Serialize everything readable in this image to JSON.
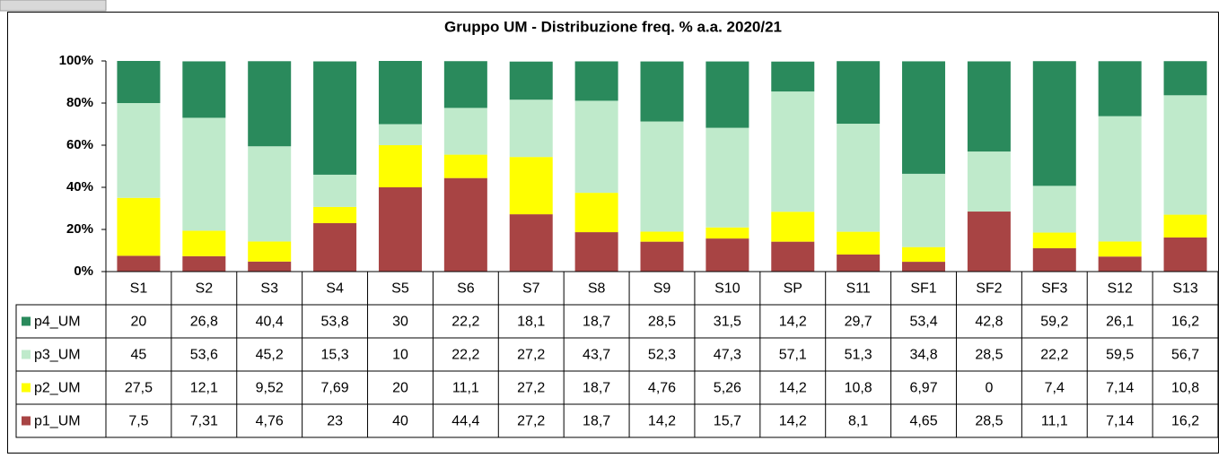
{
  "chart_data": {
    "type": "stacked_bar",
    "title": "Gruppo UM - Distribuzione freq. % a.a. 2020/21",
    "categories": [
      "S1",
      "S2",
      "S3",
      "S4",
      "S5",
      "S6",
      "S7",
      "S8",
      "S9",
      "S10",
      "SP",
      "S11",
      "SF1",
      "SF2",
      "SF3",
      "S12",
      "S13"
    ],
    "series": [
      {
        "name": "p4_UM",
        "color": "#2a8a5c",
        "values": [
          20,
          26.8,
          40.4,
          53.8,
          30,
          22.2,
          18.1,
          18.7,
          28.5,
          31.5,
          14.2,
          29.7,
          53.4,
          42.8,
          59.2,
          26.1,
          16.2
        ],
        "value_labels": [
          "20",
          "26,8",
          "40,4",
          "53,8",
          "30",
          "22,2",
          "18,1",
          "18,7",
          "28,5",
          "31,5",
          "14,2",
          "29,7",
          "53,4",
          "42,8",
          "59,2",
          "26,1",
          "16,2"
        ]
      },
      {
        "name": "p3_UM",
        "color": "#bfeacb",
        "values": [
          45,
          53.6,
          45.2,
          15.3,
          10,
          22.2,
          27.2,
          43.7,
          52.3,
          47.3,
          57.1,
          51.3,
          34.8,
          28.5,
          22.2,
          59.5,
          56.7
        ],
        "value_labels": [
          "45",
          "53,6",
          "45,2",
          "15,3",
          "10",
          "22,2",
          "27,2",
          "43,7",
          "52,3",
          "47,3",
          "57,1",
          "51,3",
          "34,8",
          "28,5",
          "22,2",
          "59,5",
          "56,7"
        ]
      },
      {
        "name": "p2_UM",
        "color": "#ffff00",
        "values": [
          27.5,
          12.1,
          9.52,
          7.69,
          20,
          11.1,
          27.2,
          18.7,
          4.76,
          5.26,
          14.2,
          10.8,
          6.97,
          0,
          7.4,
          7.14,
          10.8
        ],
        "value_labels": [
          "27,5",
          "12,1",
          "9,52",
          "7,69",
          "20",
          "11,1",
          "27,2",
          "18,7",
          "4,76",
          "5,26",
          "14,2",
          "10,8",
          "6,97",
          "0",
          "7,4",
          "7,14",
          "10,8"
        ]
      },
      {
        "name": "p1_UM",
        "color": "#a84444",
        "values": [
          7.5,
          7.31,
          4.76,
          23,
          40,
          44.4,
          27.2,
          18.7,
          14.2,
          15.7,
          14.2,
          8.1,
          4.65,
          28.5,
          11.1,
          7.14,
          16.2
        ],
        "value_labels": [
          "7,5",
          "7,31",
          "4,76",
          "23",
          "40",
          "44,4",
          "27,2",
          "18,7",
          "14,2",
          "15,7",
          "14,2",
          "8,1",
          "4,65",
          "28,5",
          "11,1",
          "7,14",
          "16,2"
        ]
      }
    ],
    "ylim": [
      0,
      100
    ],
    "yticks": [
      {
        "value": 0,
        "label": "0%"
      },
      {
        "value": 20,
        "label": "20%"
      },
      {
        "value": 40,
        "label": "40%"
      },
      {
        "value": 60,
        "label": "60%"
      },
      {
        "value": 80,
        "label": "80%"
      },
      {
        "value": 100,
        "label": "100%"
      }
    ],
    "grid": false
  }
}
